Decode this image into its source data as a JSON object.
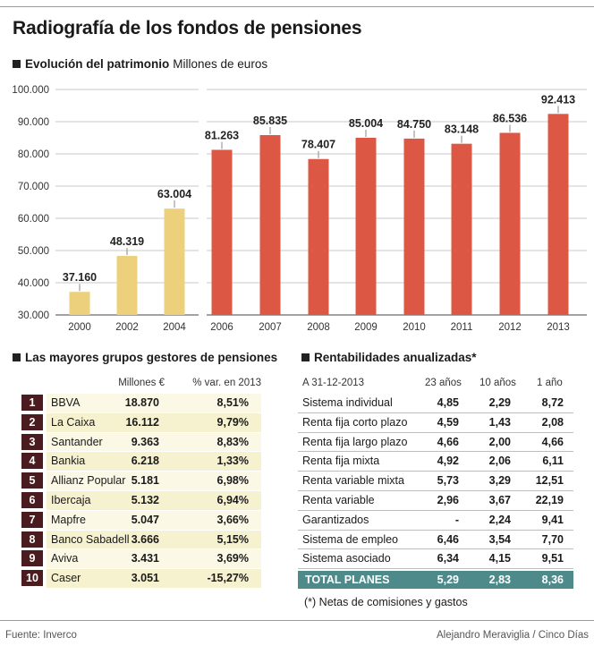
{
  "title": "Radiografía de los fondos de pensiones",
  "chart_section": {
    "label": "Evolución del patrimonio",
    "unit": "Millones de euros"
  },
  "chart_data": {
    "type": "bar",
    "title": "Evolución del patrimonio",
    "ylabel": "Millones de euros",
    "ylim": [
      30000,
      100000
    ],
    "yticks": [
      "30.000",
      "40.000",
      "50.000",
      "60.000",
      "70.000",
      "80.000",
      "90.000",
      "100.000"
    ],
    "ytick_values": [
      30000,
      40000,
      50000,
      60000,
      70000,
      80000,
      90000,
      100000
    ],
    "grid": true,
    "panels": [
      {
        "categories": [
          "2000",
          "2002",
          "2004"
        ],
        "values": [
          37160,
          48319,
          63004
        ],
        "labels": [
          "37.160",
          "48.319",
          "63.004"
        ],
        "color": "#ecd07c"
      },
      {
        "categories": [
          "2006",
          "2007",
          "2008",
          "2009",
          "2010",
          "2011",
          "2012",
          "2013"
        ],
        "values": [
          81263,
          85835,
          78407,
          85004,
          84750,
          83148,
          86536,
          92413
        ],
        "labels": [
          "81.263",
          "85.835",
          "78.407",
          "85.004",
          "84.750",
          "83.148",
          "86.536",
          "92.413"
        ],
        "color": "#dd5844"
      }
    ]
  },
  "gestores": {
    "heading": "Las mayores grupos gestores de pensiones",
    "col_millones": "Millones €",
    "col_var": "% var. en 2013",
    "rows": [
      {
        "rank": "1",
        "name": "BBVA",
        "millones": "18.870",
        "var": "8,51%"
      },
      {
        "rank": "2",
        "name": "La Caixa",
        "millones": "16.112",
        "var": "9,79%"
      },
      {
        "rank": "3",
        "name": "Santander",
        "millones": "9.363",
        "var": "8,83%"
      },
      {
        "rank": "4",
        "name": "Bankia",
        "millones": "6.218",
        "var": "1,33%"
      },
      {
        "rank": "5",
        "name": "Allianz Popular",
        "millones": "5.181",
        "var": "6,98%"
      },
      {
        "rank": "6",
        "name": "Ibercaja",
        "millones": "5.132",
        "var": "6,94%"
      },
      {
        "rank": "7",
        "name": "Mapfre",
        "millones": "5.047",
        "var": "3,66%"
      },
      {
        "rank": "8",
        "name": "Banco Sabadell",
        "millones": "3.666",
        "var": "5,15%"
      },
      {
        "rank": "9",
        "name": "Aviva",
        "millones": "3.431",
        "var": "3,69%"
      },
      {
        "rank": "10",
        "name": "Caser",
        "millones": "3.051",
        "var": "-15,27%"
      }
    ]
  },
  "rentabilidades": {
    "heading": "Rentabilidades anualizadas*",
    "date_label": "A 31-12-2013",
    "col_23": "23 años",
    "col_10": "10 años",
    "col_1": "1 año",
    "rows": [
      {
        "name": "Sistema individual",
        "y23": "4,85",
        "y10": "2,29",
        "y1": "8,72"
      },
      {
        "name": "Renta fija corto plazo",
        "y23": "4,59",
        "y10": "1,43",
        "y1": "2,08"
      },
      {
        "name": "Renta fija largo plazo",
        "y23": "4,66",
        "y10": "2,00",
        "y1": "4,66"
      },
      {
        "name": "Renta fija mixta",
        "y23": "4,92",
        "y10": "2,06",
        "y1": "6,11"
      },
      {
        "name": "Renta variable mixta",
        "y23": "5,73",
        "y10": "3,29",
        "y1": "12,51"
      },
      {
        "name": "Renta variable",
        "y23": "2,96",
        "y10": "3,67",
        "y1": "22,19"
      },
      {
        "name": "Garantizados",
        "y23": "-",
        "y10": "2,24",
        "y1": "9,41"
      },
      {
        "name": "Sistema de empleo",
        "y23": "6,46",
        "y10": "3,54",
        "y1": "7,70"
      },
      {
        "name": "Sistema asociado",
        "y23": "6,34",
        "y10": "4,15",
        "y1": "9,51"
      }
    ],
    "total": {
      "name": "TOTAL PLANES",
      "y23": "5,29",
      "y10": "2,83",
      "y1": "8,36"
    },
    "note": "(*) Netas de comisiones y gastos"
  },
  "footer": {
    "source": "Fuente: Inverco",
    "credit": "Alejandro Meraviglia / Cinco Días"
  }
}
